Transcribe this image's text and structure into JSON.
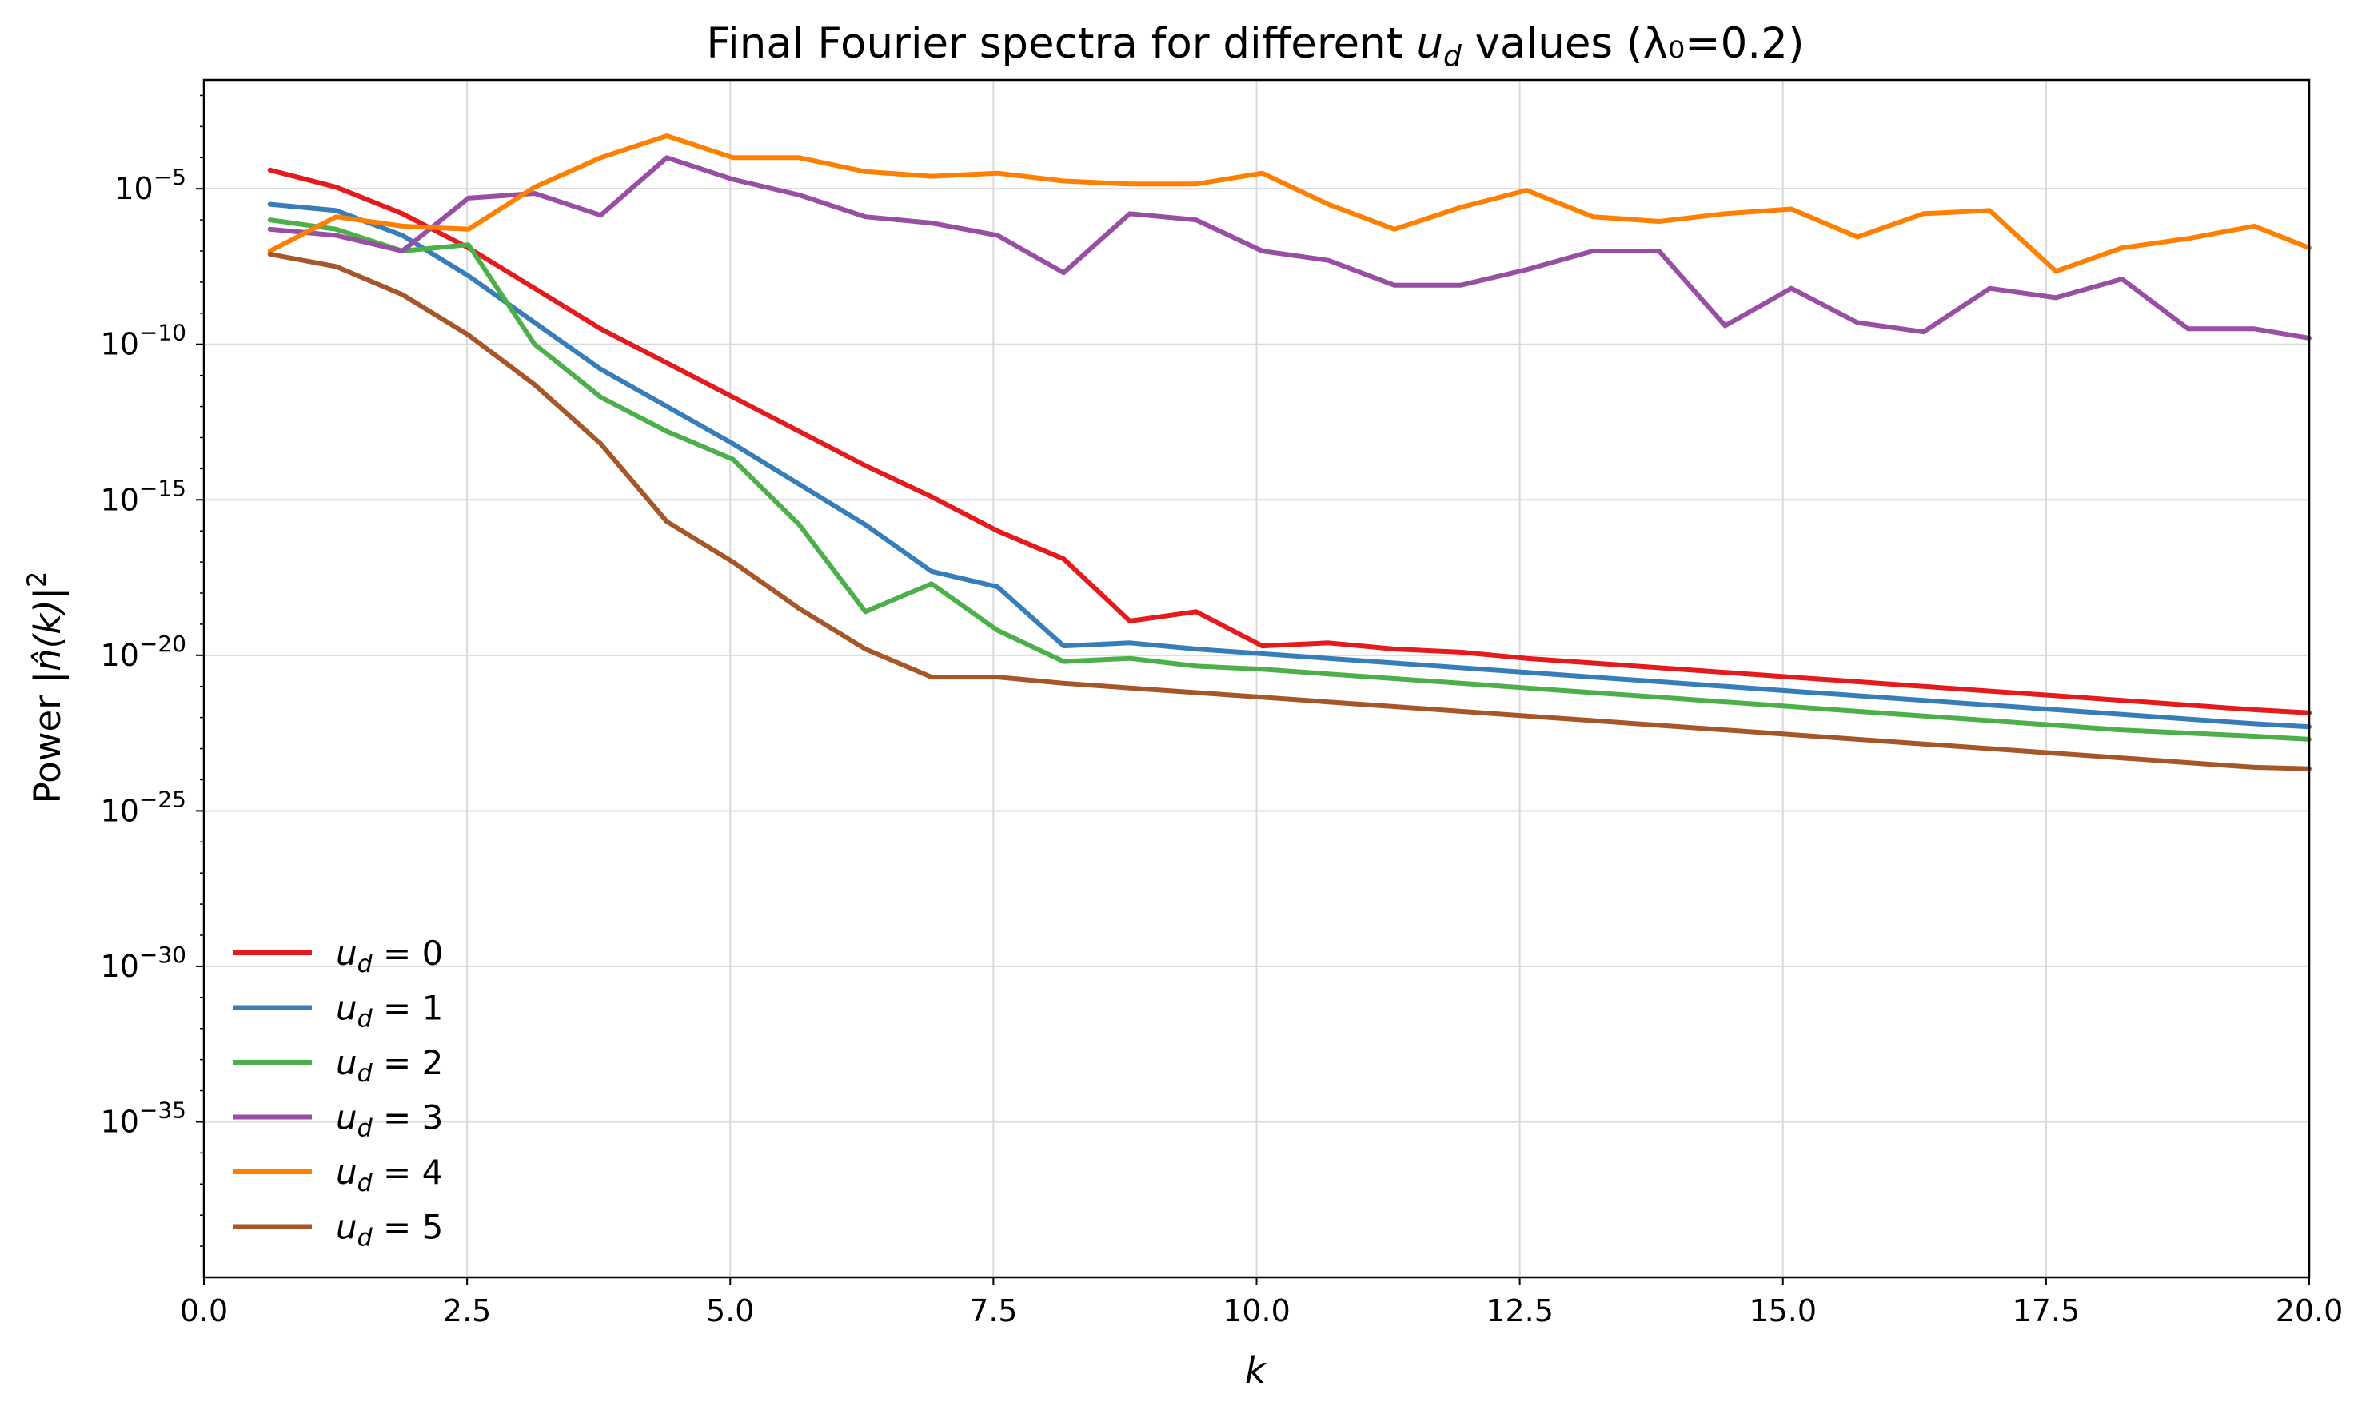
{
  "chart_data": {
    "type": "line",
    "title_parts": {
      "prefix": "Final Fourier spectra for different ",
      "var": "u",
      "sub": "d",
      "suffix": " values (λ₀=0.2)"
    },
    "xlabel": "k",
    "ylabel_parts": {
      "prefix": "Power |",
      "var": "n̂(k)",
      "suffix": "|",
      "sup": "2"
    },
    "xlim": [
      0,
      20
    ],
    "ylim_log10": [
      -40,
      -1.5
    ],
    "yscale": "log",
    "grid": true,
    "legend_position": "lower-left",
    "x_ticks": [
      "0.0",
      "2.5",
      "5.0",
      "7.5",
      "10.0",
      "12.5",
      "15.0",
      "17.5",
      "20.0"
    ],
    "x_tick_values": [
      0,
      2.5,
      5,
      7.5,
      10,
      12.5,
      15,
      17.5,
      20
    ],
    "y_ticks": [
      {
        "exp": -5,
        "base": "10",
        "sup": "−5"
      },
      {
        "exp": -10,
        "base": "10",
        "sup": "−10"
      },
      {
        "exp": -15,
        "base": "10",
        "sup": "−15"
      },
      {
        "exp": -20,
        "base": "10",
        "sup": "−20"
      },
      {
        "exp": -25,
        "base": "10",
        "sup": "−25"
      },
      {
        "exp": -30,
        "base": "10",
        "sup": "−30"
      },
      {
        "exp": -35,
        "base": "10",
        "sup": "−35"
      }
    ],
    "x": [
      0.628,
      1.257,
      1.885,
      2.513,
      3.142,
      3.77,
      4.398,
      5.027,
      5.655,
      6.283,
      6.912,
      7.54,
      8.168,
      8.796,
      9.425,
      10.053,
      10.681,
      11.31,
      11.938,
      12.566,
      13.195,
      13.823,
      14.451,
      15.08,
      15.708,
      16.336,
      16.965,
      17.593,
      18.221,
      18.85,
      19.478,
      20.0
    ],
    "series": [
      {
        "name": "u_d = 0",
        "label_var": "u",
        "label_sub": "d",
        "label_rest": " = 0",
        "color": "#e41a1c",
        "log10_values": [
          -4.4,
          -4.95,
          -5.8,
          -6.9,
          -8.2,
          -9.5,
          -10.6,
          -11.7,
          -12.8,
          -13.9,
          -14.9,
          -16.0,
          -16.9,
          -18.9,
          -18.6,
          -19.7,
          -19.6,
          -19.8,
          -19.9,
          -20.1,
          -20.25,
          -20.4,
          -20.55,
          -20.7,
          -20.85,
          -21.0,
          -21.15,
          -21.3,
          -21.45,
          -21.6,
          -21.75,
          -21.85
        ]
      },
      {
        "name": "u_d = 1",
        "label_var": "u",
        "label_sub": "d",
        "label_rest": " = 1",
        "color": "#377eb8",
        "log10_values": [
          -5.5,
          -5.7,
          -6.5,
          -7.8,
          -9.3,
          -10.8,
          -12.0,
          -13.2,
          -14.5,
          -15.8,
          -17.3,
          -17.8,
          -19.7,
          -19.6,
          -19.8,
          -19.95,
          -20.1,
          -20.25,
          -20.4,
          -20.55,
          -20.7,
          -20.85,
          -21.0,
          -21.15,
          -21.3,
          -21.45,
          -21.6,
          -21.75,
          -21.9,
          -22.05,
          -22.2,
          -22.3
        ]
      },
      {
        "name": "u_d = 2",
        "label_var": "u",
        "label_sub": "d",
        "label_rest": " = 2",
        "color": "#4daf4a",
        "log10_values": [
          -6.0,
          -6.3,
          -7.0,
          -6.8,
          -10.0,
          -11.7,
          -12.8,
          -13.7,
          -15.8,
          -18.6,
          -17.7,
          -19.2,
          -20.2,
          -20.1,
          -20.35,
          -20.45,
          -20.6,
          -20.75,
          -20.9,
          -21.05,
          -21.2,
          -21.35,
          -21.5,
          -21.65,
          -21.8,
          -21.95,
          -22.1,
          -22.25,
          -22.4,
          -22.5,
          -22.6,
          -22.7
        ]
      },
      {
        "name": "u_d = 3",
        "label_var": "u",
        "label_sub": "d",
        "label_rest": " = 3",
        "color": "#984ea3",
        "log10_values": [
          -6.3,
          -6.5,
          -7.0,
          -5.3,
          -5.15,
          -5.85,
          -4.0,
          -4.7,
          -5.2,
          -5.9,
          -6.1,
          -6.5,
          -7.7,
          -5.8,
          -6.0,
          -7.0,
          -7.3,
          -8.1,
          -8.1,
          -7.6,
          -7.0,
          -7.0,
          -9.4,
          -8.2,
          -9.3,
          -9.6,
          -8.2,
          -8.5,
          -7.9,
          -9.5,
          -9.5,
          -9.8
        ]
      },
      {
        "name": "u_d = 4",
        "label_var": "u",
        "label_sub": "d",
        "label_rest": " = 4",
        "color": "#ff7f00",
        "log10_values": [
          -7.0,
          -5.9,
          -6.2,
          -6.3,
          -4.95,
          -4.0,
          -3.3,
          -4.0,
          -4.0,
          -4.45,
          -4.6,
          -4.5,
          -4.75,
          -4.85,
          -4.85,
          -4.5,
          -5.5,
          -6.3,
          -5.6,
          -5.05,
          -5.9,
          -6.05,
          -5.8,
          -5.65,
          -6.55,
          -5.8,
          -5.7,
          -7.65,
          -6.9,
          -6.6,
          -6.2,
          -6.9
        ]
      },
      {
        "name": "u_d = 5",
        "label_var": "u",
        "label_sub": "d",
        "label_rest": " = 5",
        "color": "#a65628",
        "log10_values": [
          -7.1,
          -7.5,
          -8.4,
          -9.7,
          -11.3,
          -13.2,
          -15.7,
          -17.0,
          -18.5,
          -19.8,
          -20.7,
          -20.7,
          -20.9,
          -21.05,
          -21.2,
          -21.35,
          -21.5,
          -21.65,
          -21.8,
          -21.95,
          -22.1,
          -22.25,
          -22.4,
          -22.55,
          -22.7,
          -22.85,
          -23.0,
          -23.15,
          -23.3,
          -23.45,
          -23.6,
          -23.65
        ]
      }
    ]
  }
}
